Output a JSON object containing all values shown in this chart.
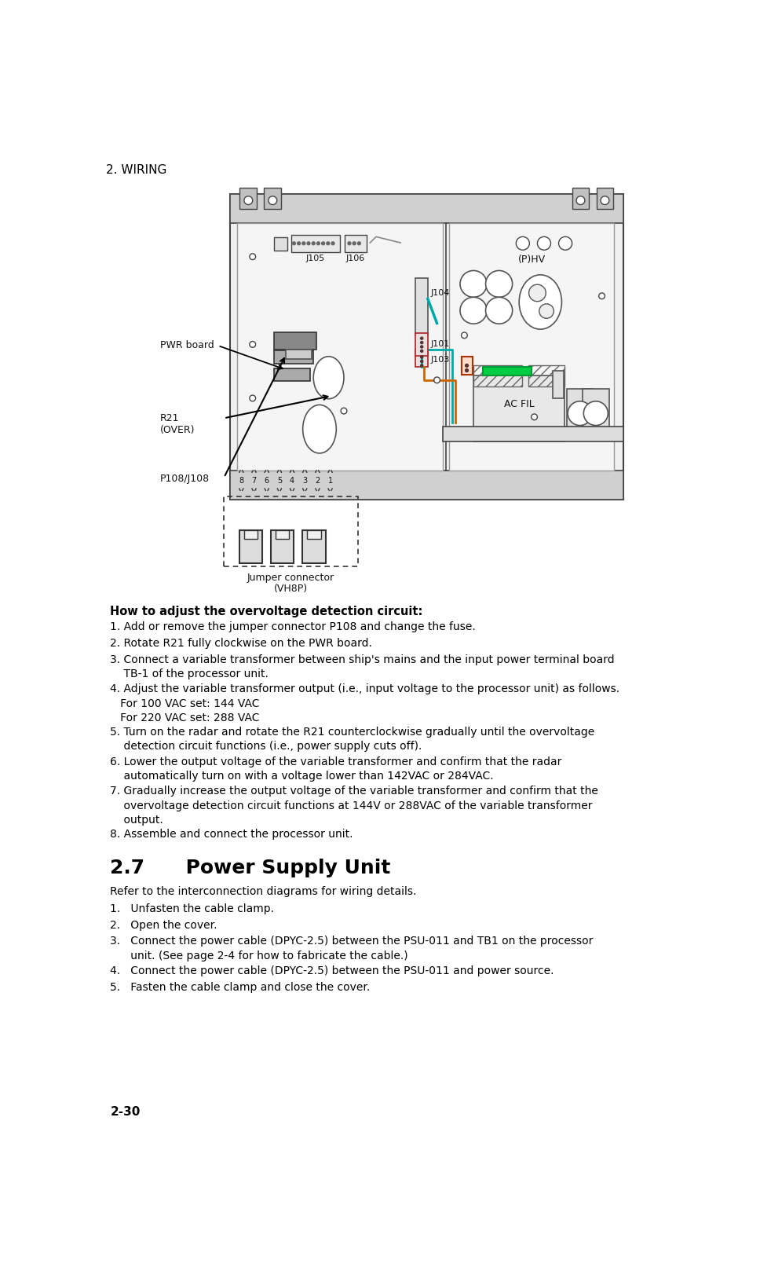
{
  "page_header": "2. WIRING",
  "page_footer": "2-30",
  "section_title": "2.7      Power Supply Unit",
  "how_to_title": "How to adjust the overvoltage detection circuit:",
  "how_to_steps": [
    "1. Add or remove the jumper connector P108 and change the fuse.",
    "2. Rotate R21 fully clockwise on the PWR board.",
    "3. Connect a variable transformer between ship's mains and the input power terminal board\n    TB-1 of the processor unit.",
    "4. Adjust the variable transformer output (i.e., input voltage to the processor unit) as follows.\n   For 100 VAC set: 144 VAC\n   For 220 VAC set: 288 VAC",
    "5. Turn on the radar and rotate the R21 counterclockwise gradually until the overvoltage\n    detection circuit functions (i.e., power supply cuts off).",
    "6. Lower the output voltage of the variable transformer and confirm that the radar\n    automatically turn on with a voltage lower than 142VAC or 284VAC.",
    "7. Gradually increase the output voltage of the variable transformer and confirm that the\n    overvoltage detection circuit functions at 144V or 288VAC of the variable transformer\n    output.",
    "8. Assemble and connect the processor unit."
  ],
  "psu_intro": "Refer to the interconnection diagrams for wiring details.",
  "psu_steps": [
    "1.   Unfasten the cable clamp.",
    "2.   Open the cover.",
    "3.   Connect the power cable (DPYC-2.5) between the PSU-011 and TB1 on the processor\n      unit. (See page 2-4 for how to fabricate the cable.)",
    "4.   Connect the power cable (DPYC-2.5) between the PSU-011 and power source.",
    "5.   Fasten the cable clamp and close the cover."
  ],
  "bg_color": "#ffffff",
  "text_color": "#000000"
}
